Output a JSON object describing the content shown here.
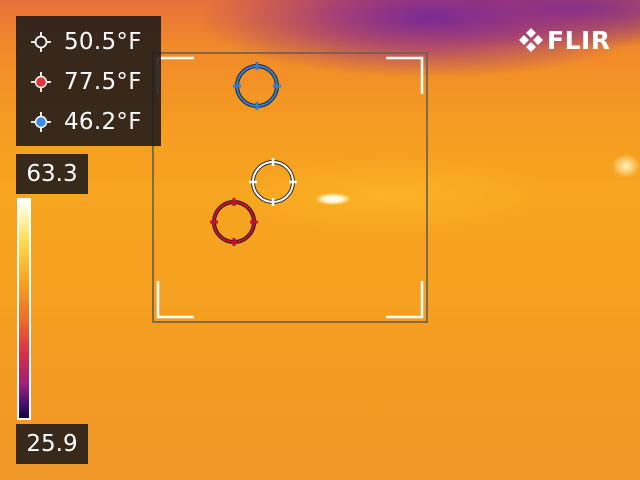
{
  "brand": {
    "logo_text": "FLIR"
  },
  "measurements": [
    {
      "name": "center-spot",
      "value": "50.5°F",
      "color": "#ffffff",
      "icon": "crosshair-icon"
    },
    {
      "name": "hot-spot",
      "value": "77.5°F",
      "color": "#e0383a",
      "icon": "crosshair-icon"
    },
    {
      "name": "cold-spot",
      "value": "46.2°F",
      "color": "#3a8ee6",
      "icon": "crosshair-icon"
    }
  ],
  "scale": {
    "max": "63.3",
    "min": "25.9",
    "palette": "iron"
  },
  "colors": {
    "center": "#ffffff",
    "hot": "#c8102e",
    "cold": "#2f7fd8"
  }
}
